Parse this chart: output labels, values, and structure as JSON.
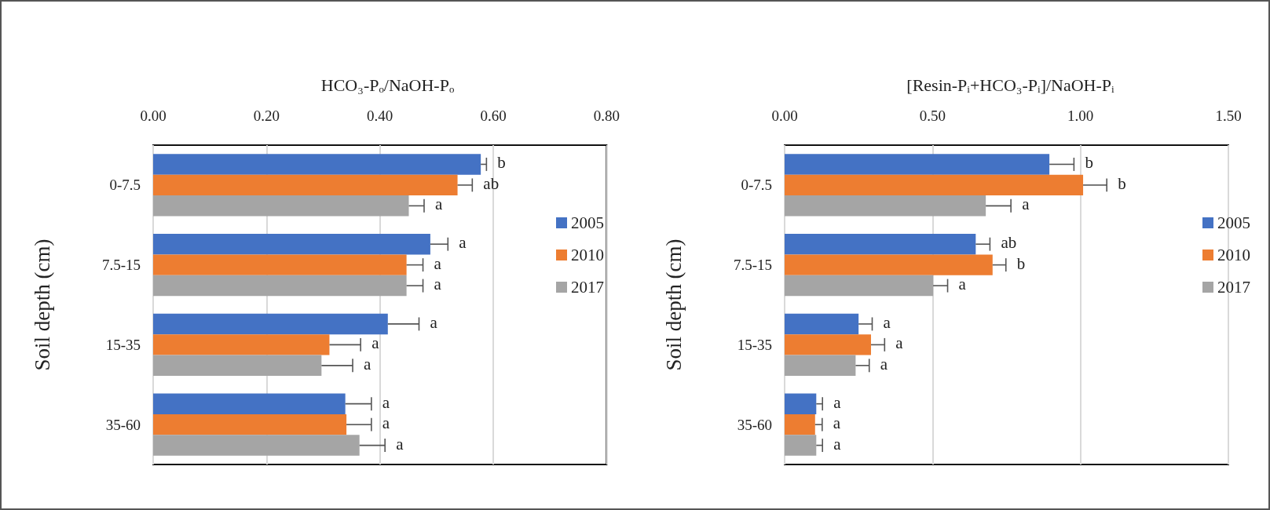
{
  "chart_data": [
    {
      "type": "bar",
      "orientation": "horizontal",
      "title": "HCO₃-Pₒ/NaOH-Pₒ",
      "ylabel": "Soil depth (cm)",
      "categories": [
        "0-7.5",
        "7.5-15",
        "15-35",
        "35-60"
      ],
      "series": [
        {
          "name": "2005",
          "color": "#4472c4",
          "values": [
            0.578,
            0.489,
            0.414,
            0.339
          ],
          "errors": [
            0.01,
            0.031,
            0.055,
            0.046
          ],
          "value_labels": [
            "b",
            "a",
            "a",
            "a"
          ]
        },
        {
          "name": "2010",
          "color": "#ed7d31",
          "values": [
            0.537,
            0.447,
            0.311,
            0.341
          ],
          "errors": [
            0.026,
            0.029,
            0.055,
            0.044
          ],
          "value_labels": [
            "ab",
            "a",
            "a",
            "a"
          ]
        },
        {
          "name": "2017",
          "color": "#a5a5a5",
          "values": [
            0.451,
            0.447,
            0.297,
            0.364
          ],
          "errors": [
            0.027,
            0.029,
            0.055,
            0.045
          ],
          "value_labels": [
            "a",
            "a",
            "a",
            "a"
          ]
        }
      ],
      "xlim": [
        0,
        0.8
      ],
      "xticks": [
        {
          "value": 0,
          "label": "0.00"
        },
        {
          "value": 0.2,
          "label": "0.20"
        },
        {
          "value": 0.4,
          "label": "0.40"
        },
        {
          "value": 0.6,
          "label": "0.60"
        },
        {
          "value": 0.8,
          "label": "0.80"
        }
      ],
      "grid": "x",
      "legend": "right"
    },
    {
      "type": "bar",
      "orientation": "horizontal",
      "title": "[Resin-Pᵢ+HCO₃-Pᵢ]/NaOH-Pᵢ",
      "ylabel": "Soil depth (cm)",
      "categories": [
        "0-7.5",
        "7.5-15",
        "15-35",
        "35-60"
      ],
      "series": [
        {
          "name": "2005",
          "color": "#4472c4",
          "values": [
            0.895,
            0.646,
            0.25,
            0.107
          ],
          "errors": [
            0.083,
            0.048,
            0.046,
            0.021
          ],
          "value_labels": [
            "b",
            "ab",
            "a",
            "a"
          ]
        },
        {
          "name": "2010",
          "color": "#ed7d31",
          "values": [
            1.009,
            0.703,
            0.292,
            0.103
          ],
          "errors": [
            0.08,
            0.045,
            0.046,
            0.024
          ],
          "value_labels": [
            "b",
            "b",
            "a",
            "a"
          ]
        },
        {
          "name": "2017",
          "color": "#a5a5a5",
          "values": [
            0.68,
            0.502,
            0.24,
            0.107
          ],
          "errors": [
            0.085,
            0.049,
            0.046,
            0.021
          ],
          "value_labels": [
            "a",
            "a",
            "a",
            "a"
          ]
        }
      ],
      "xlim": [
        0,
        1.5
      ],
      "xticks": [
        {
          "value": 0,
          "label": "0.00"
        },
        {
          "value": 0.5,
          "label": "0.50"
        },
        {
          "value": 1,
          "label": "1.00"
        },
        {
          "value": 1.5,
          "label": "1.50"
        }
      ],
      "grid": "x",
      "legend": "right"
    }
  ]
}
